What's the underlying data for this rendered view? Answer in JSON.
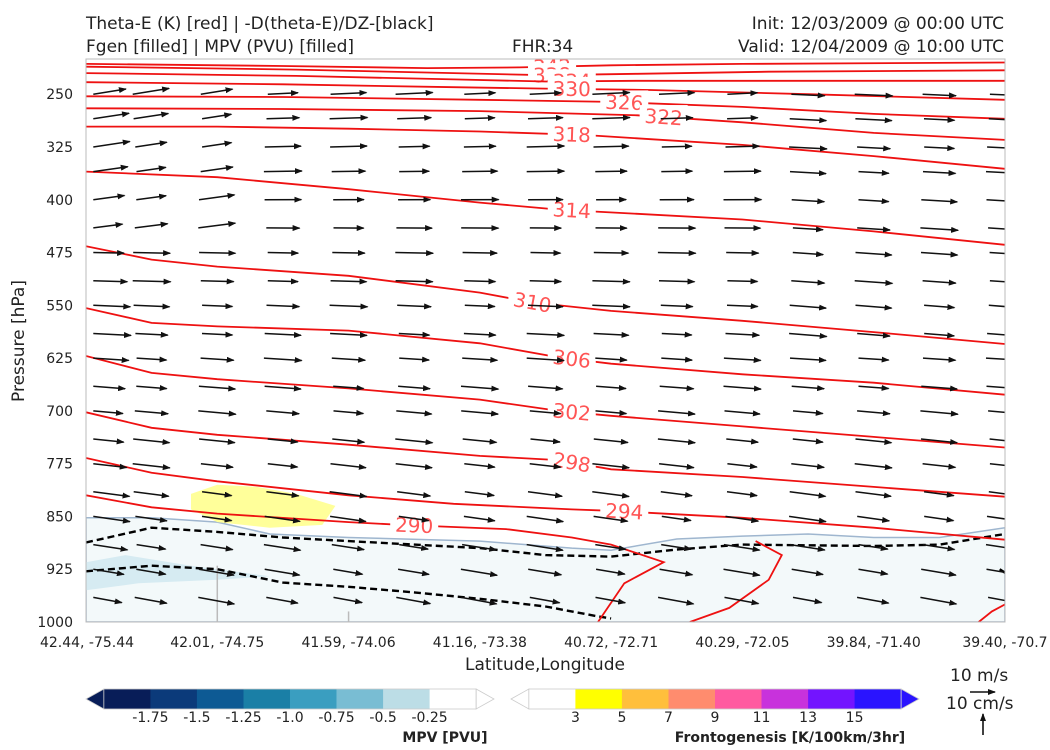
{
  "header": {
    "title_line1": "Theta-E (K) [red] | -D(theta-E)/DZ-[black]",
    "title_line2": "Fgen [filled] | MPV (PVU) [filled]",
    "fhr": "FHR:34",
    "init": "Init: 12/03/2009 @ 00:00 UTC",
    "valid": "Valid: 12/04/2009 @ 10:00 UTC"
  },
  "chart_data": {
    "type": "cross-section",
    "xlabel": "Latitude,Longitude",
    "ylabel": "Pressure [hPa]",
    "x_tick_labels": [
      "42.44, -75.44",
      "42.01, -74.75",
      "41.59, -74.06",
      "41.16, -73.38",
      "40.72, -72.71",
      "40.29, -72.05",
      "39.84, -71.40",
      "39.40, -70.7"
    ],
    "y_ticks": [
      250,
      325,
      400,
      475,
      550,
      625,
      700,
      775,
      850,
      925,
      1000
    ],
    "ylim": [
      1000,
      200
    ],
    "x_range": [
      0,
      7
    ],
    "grid": false,
    "theta_e_contours": [
      {
        "value": 342,
        "label": "342",
        "points": [
          [
            0,
            207
          ],
          [
            1.5,
            210
          ],
          [
            2.6,
            213
          ],
          [
            3.3,
            212
          ],
          [
            4,
            209
          ],
          [
            5,
            207
          ],
          [
            7,
            205
          ]
        ]
      },
      {
        "value": 338,
        "label": "338",
        "points": [
          [
            0,
            211
          ],
          [
            1.6,
            215
          ],
          [
            2.8,
            220
          ],
          [
            3.5,
            223
          ],
          [
            4.2,
            221
          ],
          [
            5.2,
            218
          ],
          [
            7,
            216
          ]
        ]
      },
      {
        "value": 334,
        "label": "334",
        "points": [
          [
            0,
            220
          ],
          [
            1.6,
            224
          ],
          [
            2.8,
            229
          ],
          [
            3.5,
            232
          ],
          [
            4.2,
            231
          ],
          [
            5.5,
            231
          ],
          [
            7,
            231
          ]
        ]
      },
      {
        "value": 330,
        "label": "330",
        "points": [
          [
            0,
            233
          ],
          [
            1.5,
            236
          ],
          [
            2.8,
            240
          ],
          [
            3.5,
            242
          ],
          [
            4.3,
            244
          ],
          [
            5.5,
            250
          ],
          [
            7,
            258
          ]
        ]
      },
      {
        "value": 326,
        "label": "326",
        "points": [
          [
            0,
            253
          ],
          [
            1.5,
            254
          ],
          [
            3,
            258
          ],
          [
            4,
            261
          ],
          [
            5,
            268
          ],
          [
            6,
            278
          ],
          [
            7,
            285
          ]
        ]
      },
      {
        "value": 322,
        "label": "322",
        "points": [
          [
            0,
            270
          ],
          [
            1.5,
            271
          ],
          [
            3,
            274
          ],
          [
            4.2,
            280
          ],
          [
            5,
            290
          ],
          [
            6,
            305
          ],
          [
            7,
            315
          ]
        ]
      },
      {
        "value": 318,
        "label": "318",
        "points": [
          [
            0,
            296
          ],
          [
            1,
            296
          ],
          [
            2,
            299
          ],
          [
            3,
            303
          ],
          [
            3.8,
            308
          ],
          [
            4.3,
            314
          ],
          [
            5,
            322
          ],
          [
            6,
            338
          ],
          [
            7,
            356
          ]
        ]
      },
      {
        "value": 314,
        "label": "314",
        "points": [
          [
            0,
            360
          ],
          [
            1,
            368
          ],
          [
            2,
            385
          ],
          [
            3,
            404
          ],
          [
            3.6,
            414
          ],
          [
            4.2,
            420
          ],
          [
            5,
            428
          ],
          [
            6,
            445
          ],
          [
            7,
            464
          ]
        ]
      },
      {
        "value": 310,
        "label": "310",
        "points": [
          [
            0,
            466
          ],
          [
            0.5,
            485
          ],
          [
            1,
            495
          ],
          [
            2,
            508
          ],
          [
            3,
            532
          ],
          [
            3.4,
            546
          ],
          [
            4,
            558
          ],
          [
            5,
            572
          ],
          [
            6,
            588
          ],
          [
            7,
            605
          ]
        ]
      },
      {
        "value": 306,
        "label": "306",
        "points": [
          [
            0,
            554
          ],
          [
            0.5,
            575
          ],
          [
            1,
            580
          ],
          [
            2,
            586
          ],
          [
            3,
            604
          ],
          [
            3.6,
            624
          ],
          [
            4,
            633
          ],
          [
            5,
            648
          ],
          [
            6,
            660
          ],
          [
            7,
            677
          ]
        ]
      },
      {
        "value": 302,
        "label": "302",
        "points": [
          [
            0,
            622
          ],
          [
            0.5,
            646
          ],
          [
            1,
            655
          ],
          [
            2,
            668
          ],
          [
            3,
            684
          ],
          [
            3.6,
            700
          ],
          [
            4,
            707
          ],
          [
            5,
            722
          ],
          [
            6,
            737
          ],
          [
            7,
            752
          ]
        ]
      },
      {
        "value": 298,
        "label": "298",
        "points": [
          [
            0,
            702
          ],
          [
            0.5,
            724
          ],
          [
            1,
            734
          ],
          [
            2,
            748
          ],
          [
            3,
            764
          ],
          [
            3.6,
            770
          ],
          [
            4,
            783
          ],
          [
            5,
            794
          ],
          [
            6,
            808
          ],
          [
            7,
            822
          ]
        ]
      },
      {
        "value": 294,
        "label": "294",
        "points": [
          [
            0,
            767
          ],
          [
            0.5,
            788
          ],
          [
            1,
            800
          ],
          [
            2,
            820
          ],
          [
            2.8,
            832
          ],
          [
            3.7,
            840
          ],
          [
            4,
            842
          ],
          [
            5,
            852
          ],
          [
            6,
            866
          ],
          [
            7,
            883
          ]
        ]
      },
      {
        "value": 290,
        "label": "290",
        "points": [
          [
            0,
            820
          ],
          [
            0.5,
            837
          ],
          [
            1,
            846
          ],
          [
            2,
            858
          ],
          [
            2.4,
            862
          ],
          [
            3.2,
            868
          ],
          [
            3.7,
            880
          ],
          [
            4,
            890
          ],
          [
            4.4,
            915
          ],
          [
            4.1,
            945
          ],
          [
            3.9,
            1000
          ]
        ]
      },
      {
        "value": 290,
        "label": "",
        "points": [
          [
            5.1,
            885
          ],
          [
            5.3,
            905
          ],
          [
            5.2,
            940
          ],
          [
            4.9,
            980
          ],
          [
            4.6,
            1000
          ]
        ]
      },
      {
        "value": 290,
        "label": "",
        "points": [
          [
            6.8,
            1000
          ],
          [
            6.9,
            985
          ],
          [
            7,
            975
          ]
        ]
      }
    ],
    "mpv_fill_boundaries": [
      {
        "name": "mpv_-0.25",
        "points": [
          [
            0,
            852
          ],
          [
            0.5,
            852
          ],
          [
            1,
            858
          ],
          [
            1.4,
            875
          ],
          [
            2,
            880
          ],
          [
            3,
            885
          ],
          [
            3.7,
            895
          ],
          [
            4,
            898
          ],
          [
            4.5,
            882
          ],
          [
            5,
            878
          ],
          [
            5.5,
            875
          ],
          [
            6,
            880
          ],
          [
            6.5,
            880
          ],
          [
            7,
            866
          ]
        ]
      },
      {
        "name": "mpv_-0.5",
        "points": [
          [
            0,
            915
          ],
          [
            0.3,
            905
          ],
          [
            0.8,
            920
          ],
          [
            1.4,
            935
          ],
          [
            1.0,
            940
          ],
          [
            0.4,
            945
          ],
          [
            0,
            955
          ]
        ]
      }
    ],
    "frontogenesis_fill": {
      "level": 3,
      "points": [
        [
          0.8,
          818
        ],
        [
          1.0,
          805
        ],
        [
          1.3,
          808
        ],
        [
          1.6,
          818
        ],
        [
          1.9,
          835
        ],
        [
          1.8,
          862
        ],
        [
          1.4,
          866
        ],
        [
          1.0,
          858
        ],
        [
          0.8,
          840
        ]
      ]
    },
    "stability_contours_black": [
      {
        "points": [
          [
            0,
            887
          ],
          [
            0.5,
            866
          ],
          [
            1,
            872
          ],
          [
            1.5,
            880
          ],
          [
            2,
            885
          ],
          [
            2.5,
            890
          ],
          [
            3,
            895
          ],
          [
            3.5,
            905
          ],
          [
            4,
            907
          ],
          [
            4.5,
            897
          ],
          [
            5,
            890
          ],
          [
            6,
            892
          ],
          [
            6.5,
            890
          ],
          [
            7,
            875
          ]
        ]
      },
      {
        "points": [
          [
            0,
            928
          ],
          [
            0.5,
            920
          ],
          [
            1,
            925
          ],
          [
            1.5,
            944
          ],
          [
            2,
            950
          ],
          [
            2.5,
            958
          ],
          [
            3,
            967
          ],
          [
            3.5,
            978
          ],
          [
            3.9,
            992
          ],
          [
            4,
            995
          ]
        ]
      },
      {
        "points": [
          [
            6.96,
            925
          ],
          [
            7,
            930
          ]
        ]
      }
    ],
    "wind_vectors": {
      "columns": [
        0.04,
        0.5,
        1,
        1.5,
        2,
        2.5,
        3,
        3.5,
        4,
        4.5,
        5,
        5.5,
        6,
        6.5,
        7
      ],
      "levels": [
        250,
        285,
        325,
        360,
        400,
        440,
        475,
        515,
        550,
        590,
        625,
        665,
        700,
        740,
        775,
        815,
        850,
        890,
        925,
        965
      ],
      "u_top": 5.5,
      "v_top": 0.45,
      "u_bottom": 4.5,
      "v_bottom": -1.5
    },
    "mpv_colorbar": {
      "title": "MPV [PVU]",
      "colors": [
        "#081d58",
        "#0b3a7a",
        "#0d5a94",
        "#1a7fa6",
        "#3a9ec0",
        "#79bdd3",
        "#bcdde6",
        "#ffffff"
      ],
      "tick_labels": [
        "-1.75",
        "-1.5",
        "-1.25",
        "-1.0",
        "-0.75",
        "-0.5",
        "-0.25"
      ]
    },
    "fgen_colorbar": {
      "title": "Frontogenesis [K/100km/3hr]",
      "colors": [
        "#ffffff",
        "#ffff00",
        "#ffbf3c",
        "#ff8c6e",
        "#ff5aa0",
        "#c832dc",
        "#7314ff",
        "#2a14ff"
      ],
      "tick_labels": [
        "3",
        "5",
        "7",
        "9",
        "11",
        "13",
        "15"
      ]
    },
    "quiver_key": {
      "label1": "10 m/s",
      "label2": "10 cm/s"
    }
  }
}
